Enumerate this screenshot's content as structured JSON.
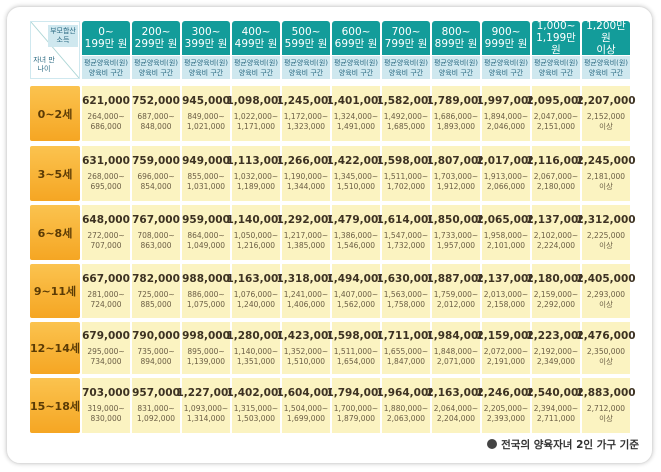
{
  "header": {
    "corner_top": "부모합산 소득",
    "corner_bottom": "자녀 만 나이",
    "columns": [
      {
        "l1": "0~",
        "l2": "199만 원"
      },
      {
        "l1": "200~",
        "l2": "299만 원"
      },
      {
        "l1": "300~",
        "l2": "399만 원"
      },
      {
        "l1": "400~",
        "l2": "499만 원"
      },
      {
        "l1": "500~",
        "l2": "599만 원"
      },
      {
        "l1": "600~",
        "l2": "699만 원"
      },
      {
        "l1": "700~",
        "l2": "799만 원"
      },
      {
        "l1": "800~",
        "l2": "899만 원"
      },
      {
        "l1": "900~",
        "l2": "999만 원"
      },
      {
        "l1": "1,000~",
        "l2": "1,199만 원"
      },
      {
        "l1": "1,200만 원",
        "l2": "이상"
      }
    ],
    "sub1": "평균양육비(원)",
    "sub2": "양육비 구간"
  },
  "table": {
    "rows": [
      {
        "label": "0~2세",
        "cells": [
          [
            "621,000",
            "264,000~",
            "686,000"
          ],
          [
            "752,000",
            "687,000~",
            "848,000"
          ],
          [
            "945,000",
            "849,000~",
            "1,021,000"
          ],
          [
            "1,098,000",
            "1,022,000~",
            "1,171,000"
          ],
          [
            "1,245,000",
            "1,172,000~",
            "1,323,000"
          ],
          [
            "1,401,000",
            "1,324,000~",
            "1,491,000"
          ],
          [
            "1,582,000",
            "1,492,000~",
            "1,685,000"
          ],
          [
            "1,789,000",
            "1,686,000~",
            "1,893,000"
          ],
          [
            "1,997,000",
            "1,894,000~",
            "2,046,000"
          ],
          [
            "2,095,000",
            "2,047,000~",
            "2,151,000"
          ],
          [
            "2,207,000",
            "2,152,000",
            "이상"
          ]
        ]
      },
      {
        "label": "3~5세",
        "cells": [
          [
            "631,000",
            "268,000~",
            "695,000"
          ],
          [
            "759,000",
            "696,000~",
            "854,000"
          ],
          [
            "949,000",
            "855,000~",
            "1,031,000"
          ],
          [
            "1,113,000",
            "1,032,000~",
            "1,189,000"
          ],
          [
            "1,266,000",
            "1,190,000~",
            "1,344,000"
          ],
          [
            "1,422,000",
            "1,345,000~",
            "1,510,000"
          ],
          [
            "1,598,000",
            "1,511,000~",
            "1,702,000"
          ],
          [
            "1,807,000",
            "1,703,000~",
            "1,912,000"
          ],
          [
            "2,017,000",
            "1,913,000~",
            "2,066,000"
          ],
          [
            "2,116,000",
            "2,067,000~",
            "2,180,000"
          ],
          [
            "2,245,000",
            "2,181,000",
            "이상"
          ]
        ]
      },
      {
        "label": "6~8세",
        "cells": [
          [
            "648,000",
            "272,000~",
            "707,000"
          ],
          [
            "767,000",
            "708,000~",
            "863,000"
          ],
          [
            "959,000",
            "864,000~",
            "1,049,000"
          ],
          [
            "1,140,000",
            "1,050,000~",
            "1,216,000"
          ],
          [
            "1,292,000",
            "1,217,000~",
            "1,385,000"
          ],
          [
            "1,479,000",
            "1,386,000~",
            "1,546,000"
          ],
          [
            "1,614,000",
            "1,547,000~",
            "1,732,000"
          ],
          [
            "1,850,000",
            "1,733,000~",
            "1,957,000"
          ],
          [
            "2,065,000",
            "1,958,000~",
            "2,101,000"
          ],
          [
            "2,137,000",
            "2,102,000~",
            "2,224,000"
          ],
          [
            "2,312,000",
            "2,225,000",
            "이상"
          ]
        ]
      },
      {
        "label": "9~11세",
        "cells": [
          [
            "667,000",
            "281,000~",
            "724,000"
          ],
          [
            "782,000",
            "725,000~",
            "885,000"
          ],
          [
            "988,000",
            "886,000~",
            "1,075,000"
          ],
          [
            "1,163,000",
            "1,076,000~",
            "1,240,000"
          ],
          [
            "1,318,000",
            "1,241,000~",
            "1,406,000"
          ],
          [
            "1,494,000",
            "1,407,000~",
            "1,562,000"
          ],
          [
            "1,630,000",
            "1,563,000~",
            "1,758,000"
          ],
          [
            "1,887,000",
            "1,759,000~",
            "2,012,000"
          ],
          [
            "2,137,000",
            "2,013,000~",
            "2,158,000"
          ],
          [
            "2,180,000",
            "2,159,000~",
            "2,292,000"
          ],
          [
            "2,405,000",
            "2,293,000",
            "이상"
          ]
        ]
      },
      {
        "label": "12~14세",
        "cells": [
          [
            "679,000",
            "295,000~",
            "734,000"
          ],
          [
            "790,000",
            "735,000~",
            "894,000"
          ],
          [
            "998,000",
            "895,000~",
            "1,139,000"
          ],
          [
            "1,280,000",
            "1,140,000~",
            "1,351,000"
          ],
          [
            "1,423,000",
            "1,352,000~",
            "1,510,000"
          ],
          [
            "1,598,000",
            "1,511,000~",
            "1,654,000"
          ],
          [
            "1,711,000",
            "1,655,000~",
            "1,847,000"
          ],
          [
            "1,984,000",
            "1,848,000~",
            "2,071,000"
          ],
          [
            "2,159,000",
            "2,072,000~",
            "2,191,000"
          ],
          [
            "2,223,000",
            "2,192,000~",
            "2,349,000"
          ],
          [
            "2,476,000",
            "2,350,000",
            "이상"
          ]
        ]
      },
      {
        "label": "15~18세",
        "cells": [
          [
            "703,000",
            "319,000~",
            "830,000"
          ],
          [
            "957,000",
            "831,000~",
            "1,092,000"
          ],
          [
            "1,227,000",
            "1,093,000~",
            "1,314,000"
          ],
          [
            "1,402,000",
            "1,315,000~",
            "1,503,000"
          ],
          [
            "1,604,000",
            "1,504,000~",
            "1,699,000"
          ],
          [
            "1,794,000",
            "1,700,000~",
            "1,879,000"
          ],
          [
            "1,964,000",
            "1,880,000~",
            "2,063,000"
          ],
          [
            "2,163,000",
            "2,064,000~",
            "2,204,000"
          ],
          [
            "2,246,000",
            "2,205,000~",
            "2,393,000"
          ],
          [
            "2,540,000",
            "2,394,000~",
            "2,711,000"
          ],
          [
            "2,883,000",
            "2,712,000",
            "이상"
          ]
        ]
      }
    ]
  },
  "footer": "전국의 양육자녀 2인 가구 기준"
}
